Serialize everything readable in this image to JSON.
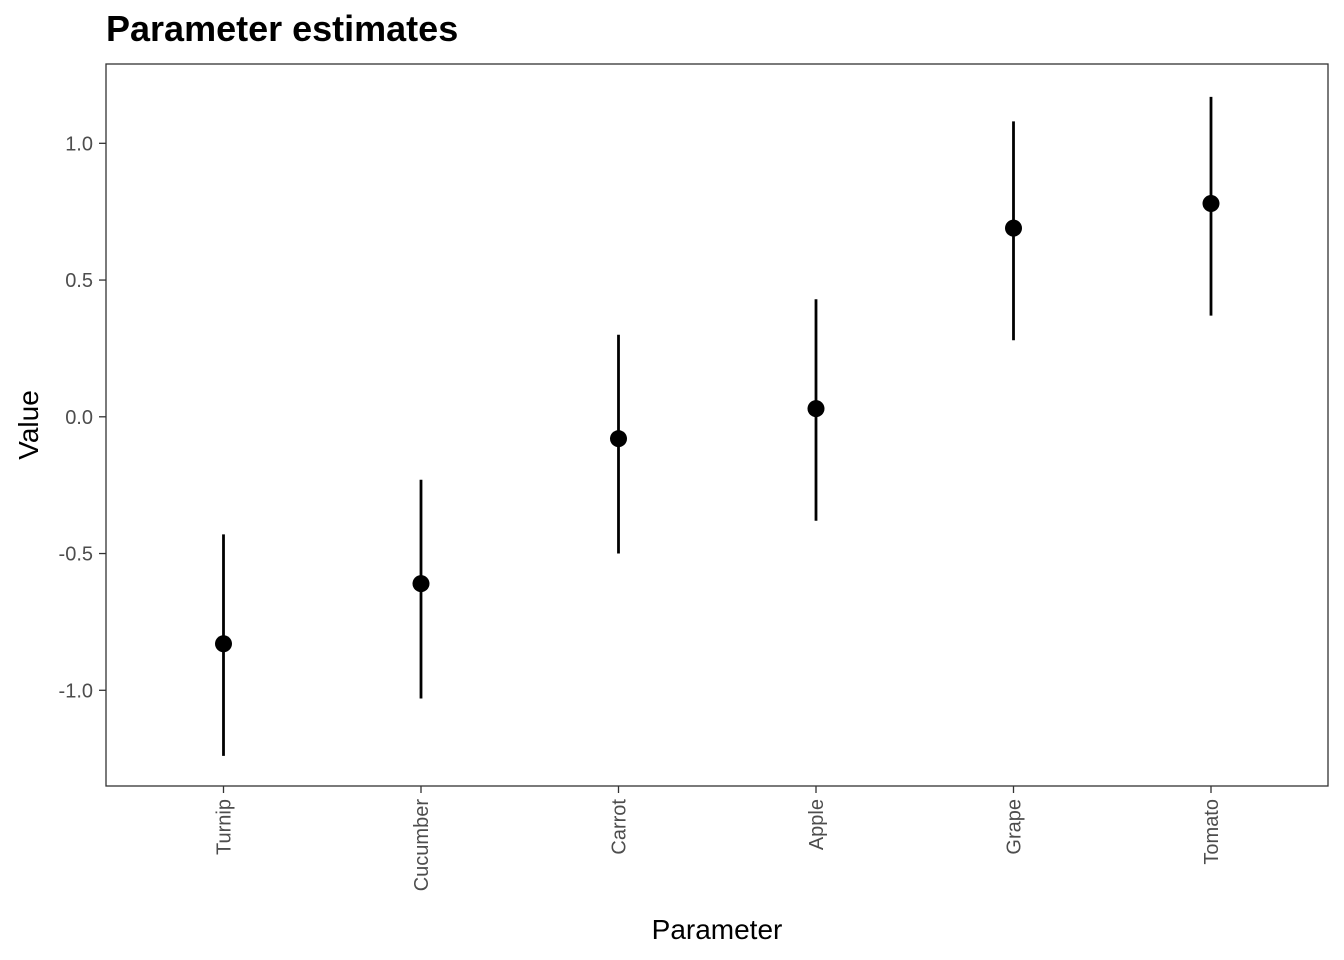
{
  "chart_data": {
    "type": "scatter",
    "title": "Parameter estimates",
    "xlabel": "Parameter",
    "ylabel": "Value",
    "categories": [
      "Turnip",
      "Cucumber",
      "Carrot",
      "Apple",
      "Grape",
      "Tomato"
    ],
    "values": [
      -0.83,
      -0.61,
      -0.08,
      0.03,
      0.69,
      0.78
    ],
    "lower": [
      -1.24,
      -1.03,
      -0.5,
      -0.38,
      0.28,
      0.37
    ],
    "upper": [
      -0.43,
      -0.23,
      0.3,
      0.43,
      1.08,
      1.17
    ],
    "ylim": [
      -1.35,
      1.29
    ],
    "yticks": [
      -1.0,
      -0.5,
      0.0,
      0.5,
      1.0
    ],
    "ytick_labels": [
      "-1.0",
      "-0.5",
      "0.0",
      "0.5",
      "1.0"
    ],
    "grid": false,
    "legend": "none",
    "point_color": "#000000"
  }
}
